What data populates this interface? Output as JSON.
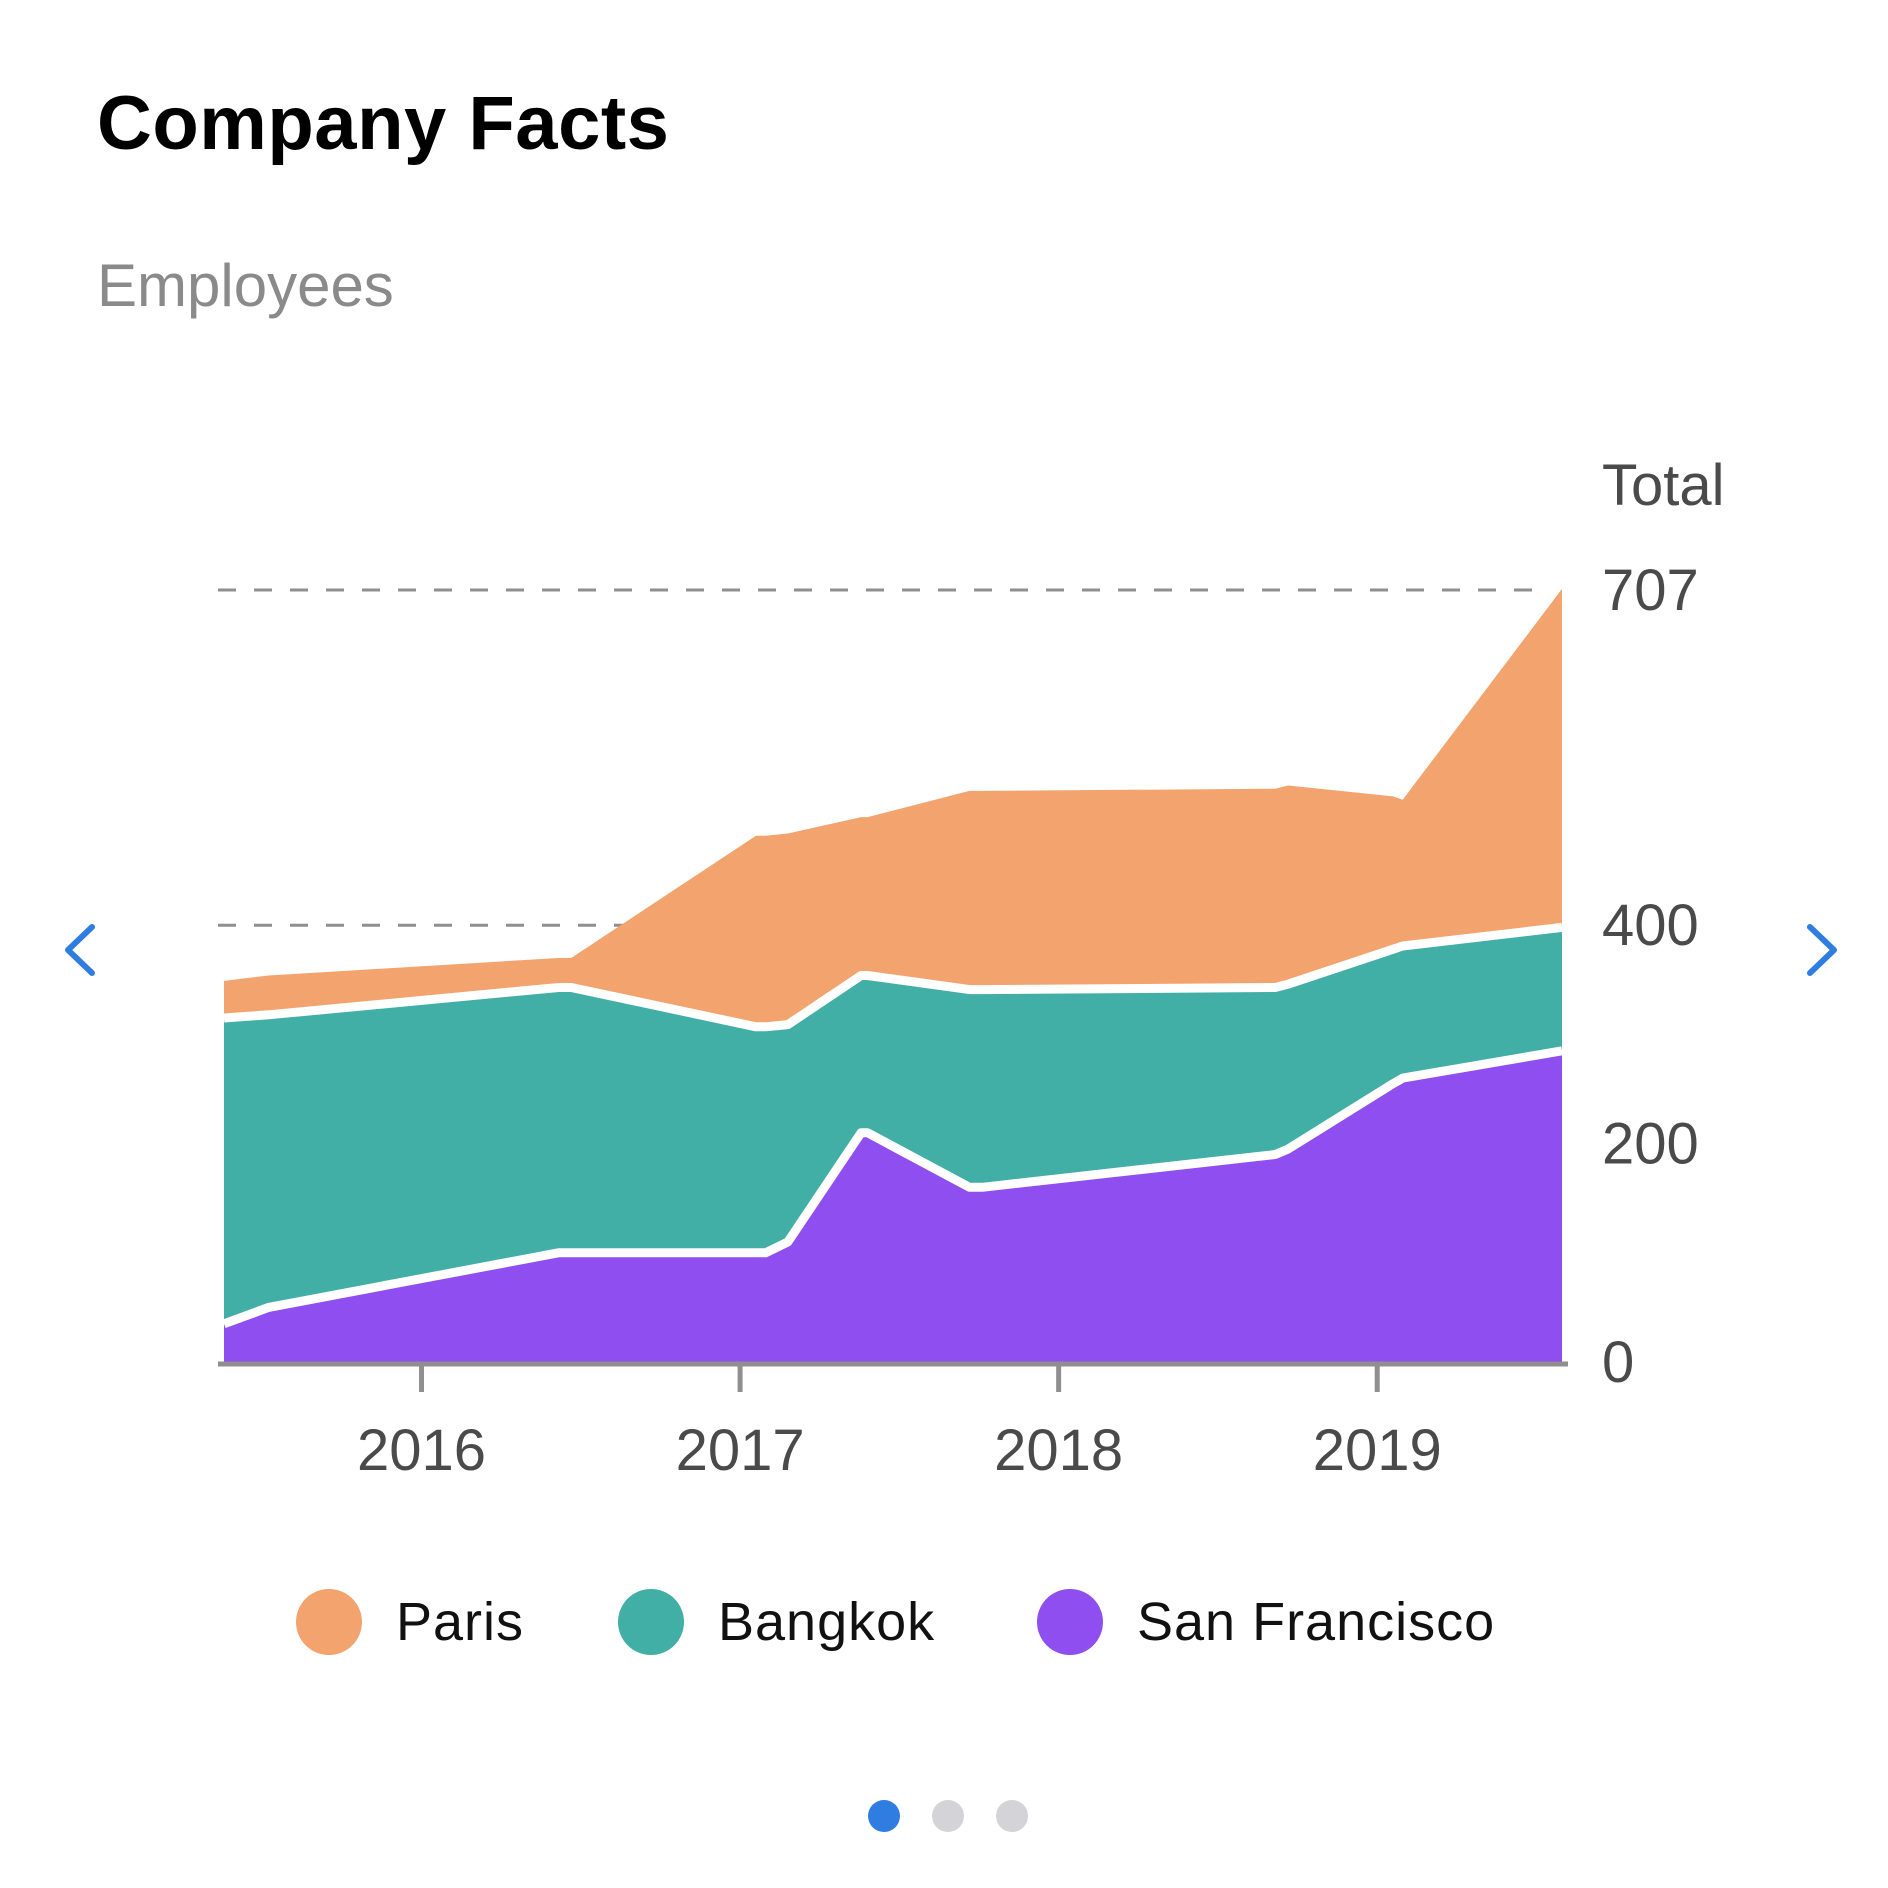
{
  "card": {
    "title": "Company Facts",
    "subtitle": "Employees"
  },
  "navigation": {
    "prev_icon": "chevron-left-icon",
    "next_icon": "chevron-right-icon",
    "accent_color": "#2f7de1"
  },
  "pager": {
    "pages": 3,
    "active_index": 0,
    "active_color": "#2f7de1",
    "inactive_color": "#d3d3d8"
  },
  "chart_data": {
    "type": "area",
    "stacked": true,
    "title": "",
    "xlabel": "",
    "ylabel": "Total",
    "x_ticks": [
      "2016",
      "2017",
      "2018",
      "2019"
    ],
    "x_tick_values": [
      2016,
      2017,
      2018,
      2019
    ],
    "x_range": [
      2015.38,
      2019.58
    ],
    "y_ticks": [
      0,
      200,
      400,
      707
    ],
    "y_gridlines": [
      400,
      707
    ],
    "ylim": [
      0,
      707
    ],
    "x": [
      2015.38,
      2015.52,
      2016.43,
      2016.47,
      2017.05,
      2017.08,
      2017.15,
      2017.38,
      2017.4,
      2017.72,
      2017.76,
      2018.68,
      2018.72,
      2019.05,
      2019.08,
      2019.58
    ],
    "series": [
      {
        "name": "San Francisco",
        "color": "#8f4eef",
        "values": [
          35,
          50,
          100,
          100,
          100,
          100,
          110,
          210,
          210,
          160,
          160,
          190,
          195,
          255,
          260,
          285
        ]
      },
      {
        "name": "Bangkok",
        "color": "#41afa5",
        "values": [
          280,
          268,
          243,
          243,
          207,
          207,
          199,
          144,
          144,
          181,
          181,
          153,
          151,
          123,
          121,
          113
        ]
      },
      {
        "name": "Paris",
        "color": "#f2a36e",
        "values": [
          34,
          36,
          27,
          27,
          175,
          175,
          175,
          145,
          145,
          182,
          182,
          182,
          182,
          140,
          134,
          310
        ]
      }
    ],
    "legend_position": "bottom",
    "grid": "dashed, y only"
  }
}
